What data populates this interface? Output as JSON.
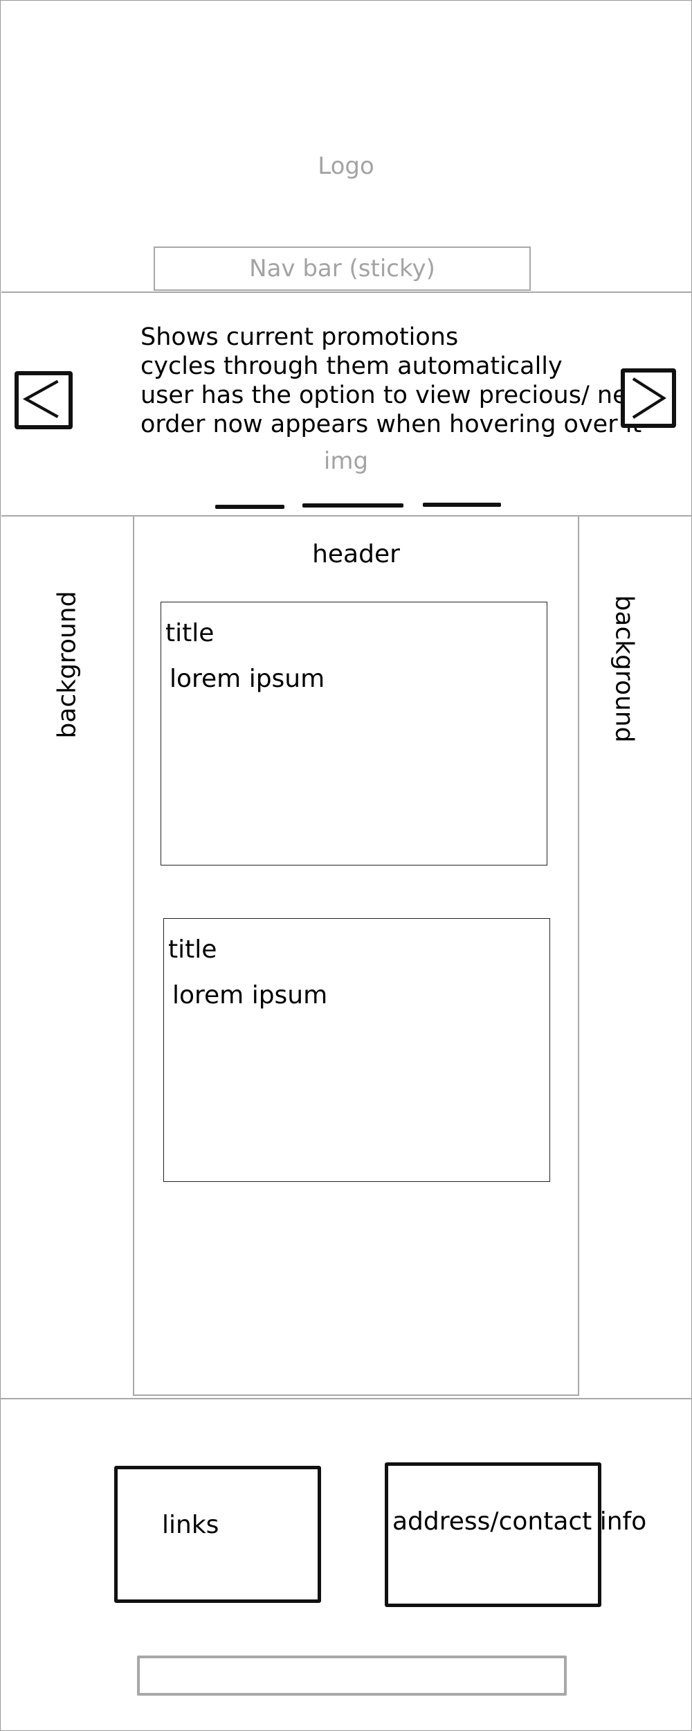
{
  "header": {
    "logo_label": "Logo",
    "navbar_label": "Nav bar (sticky)"
  },
  "carousel": {
    "description_lines": [
      "Shows current promotions",
      "cycles through them automatically",
      "user has the option to view precious/ next",
      "order now appears when hovering over it"
    ],
    "image_label": "img",
    "prev_icon": "chevron-left-icon",
    "next_icon": "chevron-right-icon",
    "indicator_count": 3
  },
  "main": {
    "header_label": "header",
    "background_left_label": "background",
    "background_right_label": "background",
    "cards": [
      {
        "title": "title",
        "body": "lorem ipsum"
      },
      {
        "title": "title",
        "body": "lorem ipsum"
      }
    ]
  },
  "footer": {
    "links_label": "links",
    "contact_label": "address/contact info"
  },
  "colors": {
    "wireframe_gray": "#a8a8a8",
    "placeholder_text": "#a3a3a3",
    "ink": "#111111"
  }
}
